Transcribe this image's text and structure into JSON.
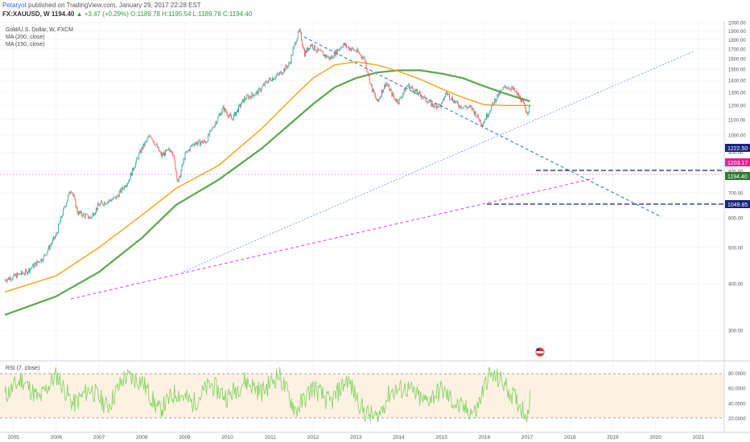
{
  "header": {
    "author": "Petaryot",
    "published": "published on TradingView.com, January 29, 2017 22:28 EST",
    "symbol_line_prefix": "FX:XAUUSD, W  1194.40",
    "change": "▲ +3.47 (+0.29%)",
    "ohlc": "O:1189.78 H:1195.54 L:1189.78 C:1194.40"
  },
  "legend": {
    "title": "Gold/U.S. Dollar, W, FXCM",
    "ma200": "MA (200, close)",
    "ma150": "MA (150, close)"
  },
  "rsi_label": "RSI (7, close)",
  "price_labels": {
    "p1222": "1222.50",
    "p1203": "1203.17",
    "p1194": "1194.40",
    "p1049": "1049.85"
  },
  "colors": {
    "up": "#26a69a",
    "down": "#ef5350",
    "price": "#2e7d32",
    "ma200": "#5aa84a",
    "ma150": "#f5a623",
    "blue_trend": "#2a6ac8",
    "magenta_trend": "#e040fb",
    "rsi": "#7cd35c",
    "rsi_band": "#fdf1e2"
  },
  "chart_data": [
    {
      "type": "line",
      "title": "Gold/U.S. Dollar, W, FXCM",
      "x_ticks": [
        "2005",
        "2006",
        "2007",
        "2008",
        "2009",
        "2010",
        "2011",
        "2012",
        "2013",
        "2014",
        "2015",
        "2016",
        "2017",
        "2018",
        "2019",
        "2020",
        "2021"
      ],
      "y_ticks": [
        "300.00",
        "400.00",
        "500.00",
        "600.00",
        "700.00",
        "800.00",
        "900.00",
        "1000.00",
        "1100.00",
        "1200.00",
        "1300.00",
        "1400.00",
        "1500.00",
        "1600.00",
        "1700.00",
        "1800.00",
        "1900.00",
        "2000.00"
      ],
      "xlim": [
        2004.8,
        2021.4
      ],
      "ylim": [
        250,
        2010
      ],
      "series": [
        {
          "name": "Gold/U.S. Dollar",
          "x": [
            2004.8,
            2005.3,
            2005.7,
            2006.0,
            2006.35,
            2006.5,
            2006.8,
            2007.0,
            2007.4,
            2007.7,
            2008.0,
            2008.2,
            2008.45,
            2008.7,
            2008.85,
            2009.0,
            2009.2,
            2009.5,
            2009.9,
            2010.1,
            2010.4,
            2010.7,
            2010.95,
            2011.2,
            2011.45,
            2011.6,
            2011.68,
            2011.8,
            2011.95,
            2012.1,
            2012.4,
            2012.7,
            2012.8,
            2013.0,
            2013.2,
            2013.35,
            2013.5,
            2013.6,
            2013.7,
            2013.9,
            2014.0,
            2014.2,
            2014.5,
            2014.8,
            2015.0,
            2015.1,
            2015.4,
            2015.7,
            2015.95,
            2016.1,
            2016.3,
            2016.5,
            2016.65,
            2016.85,
            2017.0,
            2017.07
          ],
          "y": [
            410,
            430,
            470,
            540,
            720,
            620,
            600,
            650,
            680,
            760,
            920,
            1000,
            880,
            920,
            740,
            880,
            950,
            960,
            1180,
            1100,
            1250,
            1300,
            1400,
            1450,
            1550,
            1800,
            1900,
            1650,
            1750,
            1680,
            1600,
            1750,
            1720,
            1680,
            1600,
            1350,
            1220,
            1300,
            1380,
            1250,
            1230,
            1360,
            1280,
            1200,
            1200,
            1300,
            1200,
            1180,
            1070,
            1150,
            1270,
            1350,
            1330,
            1250,
            1150,
            1194.4
          ]
        },
        {
          "name": "MA (200, close)",
          "x": [
            2004.8,
            2006.0,
            2007.0,
            2008.0,
            2008.8,
            2009.8,
            2010.8,
            2011.5,
            2012.0,
            2012.5,
            2013.0,
            2013.5,
            2014.0,
            2014.5,
            2015.0,
            2015.5,
            2016.0,
            2016.5,
            2017.07
          ],
          "y": [
            330,
            370,
            430,
            530,
            650,
            760,
            920,
            1080,
            1210,
            1340,
            1420,
            1470,
            1490,
            1490,
            1460,
            1420,
            1350,
            1290,
            1230
          ]
        },
        {
          "name": "MA (150, close)",
          "x": [
            2004.8,
            2006.0,
            2007.0,
            2008.0,
            2008.8,
            2009.8,
            2010.8,
            2011.5,
            2012.0,
            2012.5,
            2013.0,
            2013.5,
            2014.0,
            2014.5,
            2015.0,
            2015.5,
            2016.0,
            2016.5,
            2017.07
          ],
          "y": [
            380,
            420,
            500,
            610,
            720,
            830,
            1040,
            1250,
            1420,
            1540,
            1570,
            1540,
            1480,
            1410,
            1330,
            1260,
            1205,
            1200,
            1200
          ]
        }
      ]
    },
    {
      "type": "line",
      "title": "RSI (7, close)",
      "y_ticks": [
        "80.0000",
        "60.0000",
        "40.0000",
        "20.0000"
      ],
      "ylim": [
        10,
        90
      ],
      "bands": [
        20,
        80
      ],
      "series": [
        {
          "name": "RSI (7, close)",
          "x": [
            2004.8,
            2005.2,
            2005.6,
            2006.0,
            2006.4,
            2006.8,
            2007.2,
            2007.6,
            2008.0,
            2008.4,
            2008.8,
            2009.2,
            2009.6,
            2010.0,
            2010.4,
            2010.8,
            2011.2,
            2011.6,
            2012.0,
            2012.4,
            2012.8,
            2013.2,
            2013.5,
            2013.8,
            2014.2,
            2014.6,
            2015.0,
            2015.4,
            2015.8,
            2016.1,
            2016.4,
            2016.8,
            2017.0,
            2017.07
          ],
          "y": [
            50,
            72,
            45,
            78,
            38,
            60,
            35,
            75,
            70,
            30,
            55,
            40,
            65,
            48,
            70,
            55,
            78,
            30,
            62,
            40,
            72,
            28,
            20,
            55,
            60,
            42,
            58,
            35,
            28,
            78,
            70,
            40,
            25,
            45
          ]
        }
      ]
    }
  ]
}
